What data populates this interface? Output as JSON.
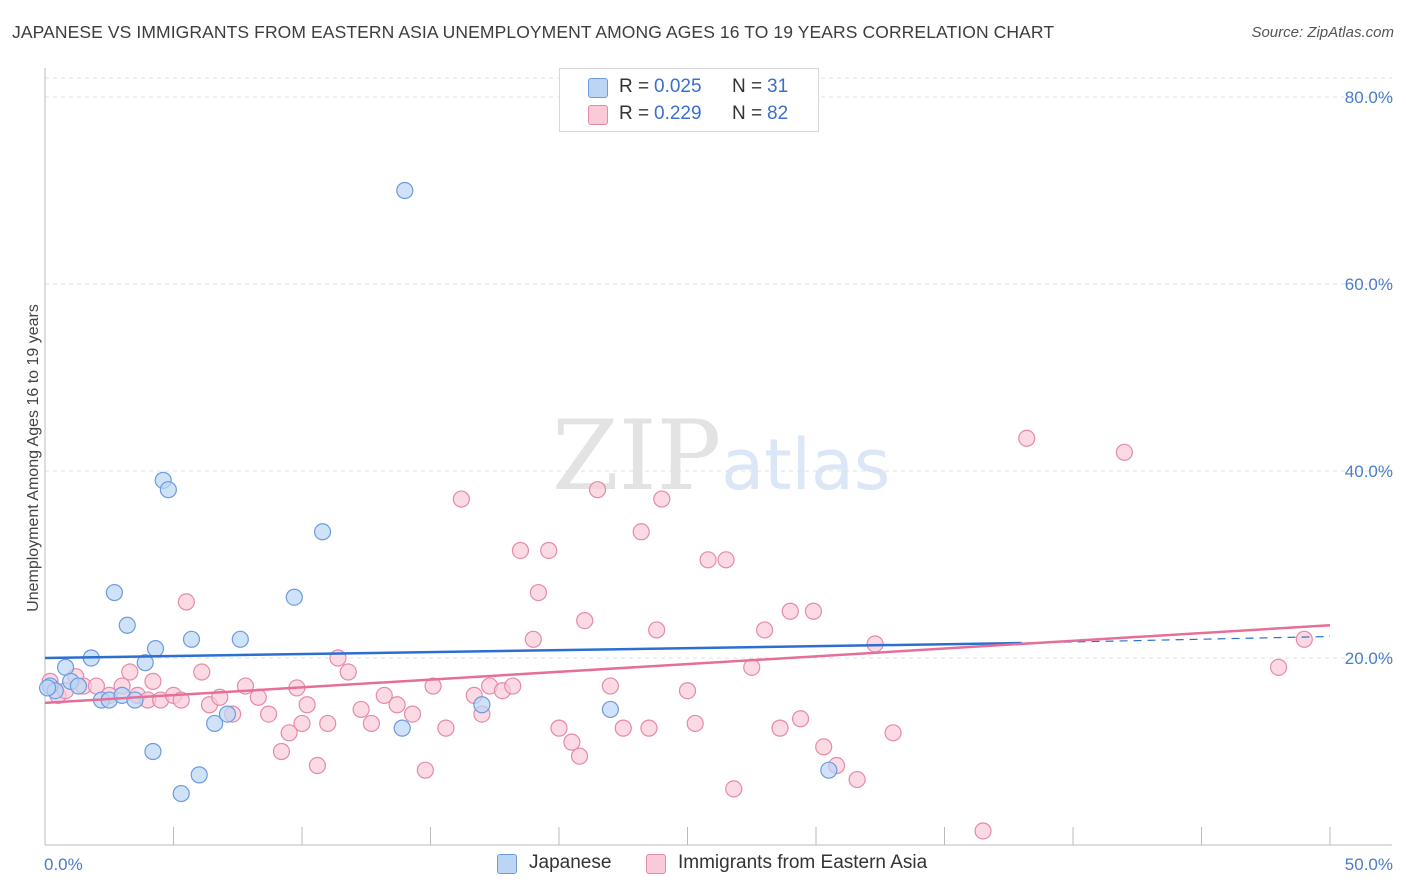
{
  "title": "JAPANESE VS IMMIGRANTS FROM EASTERN ASIA UNEMPLOYMENT AMONG AGES 16 TO 19 YEARS CORRELATION CHART",
  "source": "Source: ZipAtlas.com",
  "watermark": {
    "zip": "ZIP",
    "atlas": "atlas"
  },
  "legend": {
    "rows": [
      {
        "r_label": "R =",
        "r_value": "0.025",
        "n_label": "N =",
        "n_value": "31",
        "color": "#a9c8f2"
      },
      {
        "r_label": "R =",
        "r_value": "0.229",
        "n_label": "N =",
        "n_value": "82",
        "color": "#f6b8cb"
      }
    ]
  },
  "bottom_legend": [
    {
      "label": "Japanese",
      "color": "#a9c8f2"
    },
    {
      "label": "Immigrants from Eastern Asia",
      "color": "#f6b8cb"
    }
  ],
  "colors": {
    "japanese_fill": "#bcd5f5",
    "japanese_stroke": "#6b9be0",
    "japanese_line": "#2d6fd0",
    "immigrants_fill": "#f9cbd9",
    "immigrants_stroke": "#e58aa8",
    "immigrants_line": "#e56f99",
    "tick_text": "#4a7cc9",
    "grid": "#e0e0e0"
  },
  "chart_data": {
    "type": "scatter",
    "title": "JAPANESE VS IMMIGRANTS FROM EASTERN ASIA UNEMPLOYMENT AMONG AGES 16 TO 19 YEARS CORRELATION CHART",
    "xlabel": "",
    "ylabel": "Unemployment Among Ages 16 to 19 years",
    "xlim": [
      0,
      50
    ],
    "ylim": [
      0,
      80
    ],
    "x_tick_labels": [
      "0.0%",
      "50.0%"
    ],
    "y_ticks": [
      20,
      40,
      60,
      80
    ],
    "y_tick_labels": [
      "20.0%",
      "40.0%",
      "60.0%",
      "80.0%"
    ],
    "grid": "horizontal dashed",
    "legend_position": "top-center",
    "series": [
      {
        "name": "Japanese",
        "points": [
          [
            0.2,
            17.0
          ],
          [
            0.4,
            16.5
          ],
          [
            0.8,
            19.0
          ],
          [
            1.0,
            17.5
          ],
          [
            1.3,
            17.0
          ],
          [
            1.8,
            20.0
          ],
          [
            2.2,
            15.5
          ],
          [
            2.5,
            15.5
          ],
          [
            2.7,
            27.0
          ],
          [
            3.0,
            16.0
          ],
          [
            3.2,
            23.5
          ],
          [
            3.5,
            15.5
          ],
          [
            3.9,
            19.5
          ],
          [
            4.2,
            10.0
          ],
          [
            4.3,
            21.0
          ],
          [
            4.6,
            39.0
          ],
          [
            4.8,
            38.0
          ],
          [
            5.3,
            5.5
          ],
          [
            5.7,
            22.0
          ],
          [
            6.0,
            7.5
          ],
          [
            6.6,
            13.0
          ],
          [
            7.1,
            14.0
          ],
          [
            7.6,
            22.0
          ],
          [
            9.7,
            26.5
          ],
          [
            10.8,
            33.5
          ],
          [
            13.9,
            12.5
          ],
          [
            14.0,
            70.0
          ],
          [
            17.0,
            15.0
          ],
          [
            22.0,
            14.5
          ],
          [
            30.5,
            8.0
          ],
          [
            0.1,
            16.8
          ]
        ],
        "trend": {
          "x": [
            0,
            38,
            50
          ],
          "y": [
            20.0,
            21.6,
            22.3
          ]
        }
      },
      {
        "name": "Immigrants from Eastern Asia",
        "points": [
          [
            0.2,
            17.5
          ],
          [
            0.5,
            16.0
          ],
          [
            0.8,
            16.5
          ],
          [
            1.2,
            18.0
          ],
          [
            1.5,
            17.0
          ],
          [
            2.0,
            17.0
          ],
          [
            2.5,
            16.0
          ],
          [
            3.0,
            17.0
          ],
          [
            3.3,
            18.5
          ],
          [
            3.6,
            16.0
          ],
          [
            4.0,
            15.5
          ],
          [
            4.2,
            17.5
          ],
          [
            4.5,
            15.5
          ],
          [
            5.0,
            16.0
          ],
          [
            5.3,
            15.5
          ],
          [
            5.5,
            26.0
          ],
          [
            6.1,
            18.5
          ],
          [
            6.4,
            15.0
          ],
          [
            6.8,
            15.8
          ],
          [
            7.3,
            14.0
          ],
          [
            7.8,
            17.0
          ],
          [
            8.3,
            15.8
          ],
          [
            8.7,
            14.0
          ],
          [
            9.2,
            10.0
          ],
          [
            9.5,
            12.0
          ],
          [
            9.8,
            16.8
          ],
          [
            10.2,
            15.0
          ],
          [
            10.6,
            8.5
          ],
          [
            11.0,
            13.0
          ],
          [
            11.4,
            20.0
          ],
          [
            11.8,
            18.5
          ],
          [
            12.3,
            14.5
          ],
          [
            12.7,
            13.0
          ],
          [
            13.2,
            16.0
          ],
          [
            13.7,
            15.0
          ],
          [
            14.3,
            14.0
          ],
          [
            14.8,
            8.0
          ],
          [
            15.1,
            17.0
          ],
          [
            15.6,
            12.5
          ],
          [
            16.2,
            37.0
          ],
          [
            16.7,
            16.0
          ],
          [
            17.0,
            14.0
          ],
          [
            17.3,
            17.0
          ],
          [
            17.8,
            16.5
          ],
          [
            18.2,
            17.0
          ],
          [
            18.5,
            31.5
          ],
          [
            19.0,
            22.0
          ],
          [
            19.2,
            27.0
          ],
          [
            19.6,
            31.5
          ],
          [
            20.0,
            12.5
          ],
          [
            20.5,
            11.0
          ],
          [
            20.8,
            9.5
          ],
          [
            21.0,
            24.0
          ],
          [
            21.5,
            38.0
          ],
          [
            22.0,
            17.0
          ],
          [
            22.5,
            12.5
          ],
          [
            23.2,
            33.5
          ],
          [
            23.5,
            12.5
          ],
          [
            23.8,
            23.0
          ],
          [
            24.0,
            37.0
          ],
          [
            25.0,
            16.5
          ],
          [
            25.3,
            13.0
          ],
          [
            25.8,
            30.5
          ],
          [
            26.5,
            30.5
          ],
          [
            26.8,
            6.0
          ],
          [
            27.5,
            19.0
          ],
          [
            28.0,
            23.0
          ],
          [
            28.6,
            12.5
          ],
          [
            29.0,
            25.0
          ],
          [
            29.4,
            13.5
          ],
          [
            29.9,
            25.0
          ],
          [
            30.3,
            10.5
          ],
          [
            30.8,
            8.5
          ],
          [
            31.6,
            7.0
          ],
          [
            32.3,
            21.5
          ],
          [
            33.0,
            12.0
          ],
          [
            36.5,
            1.5
          ],
          [
            38.2,
            43.5
          ],
          [
            42.0,
            42.0
          ],
          [
            48.0,
            19.0
          ],
          [
            49.0,
            22.0
          ],
          [
            10.0,
            13.0
          ]
        ],
        "trend": {
          "x": [
            0,
            50
          ],
          "y": [
            15.2,
            23.5
          ]
        }
      }
    ]
  }
}
